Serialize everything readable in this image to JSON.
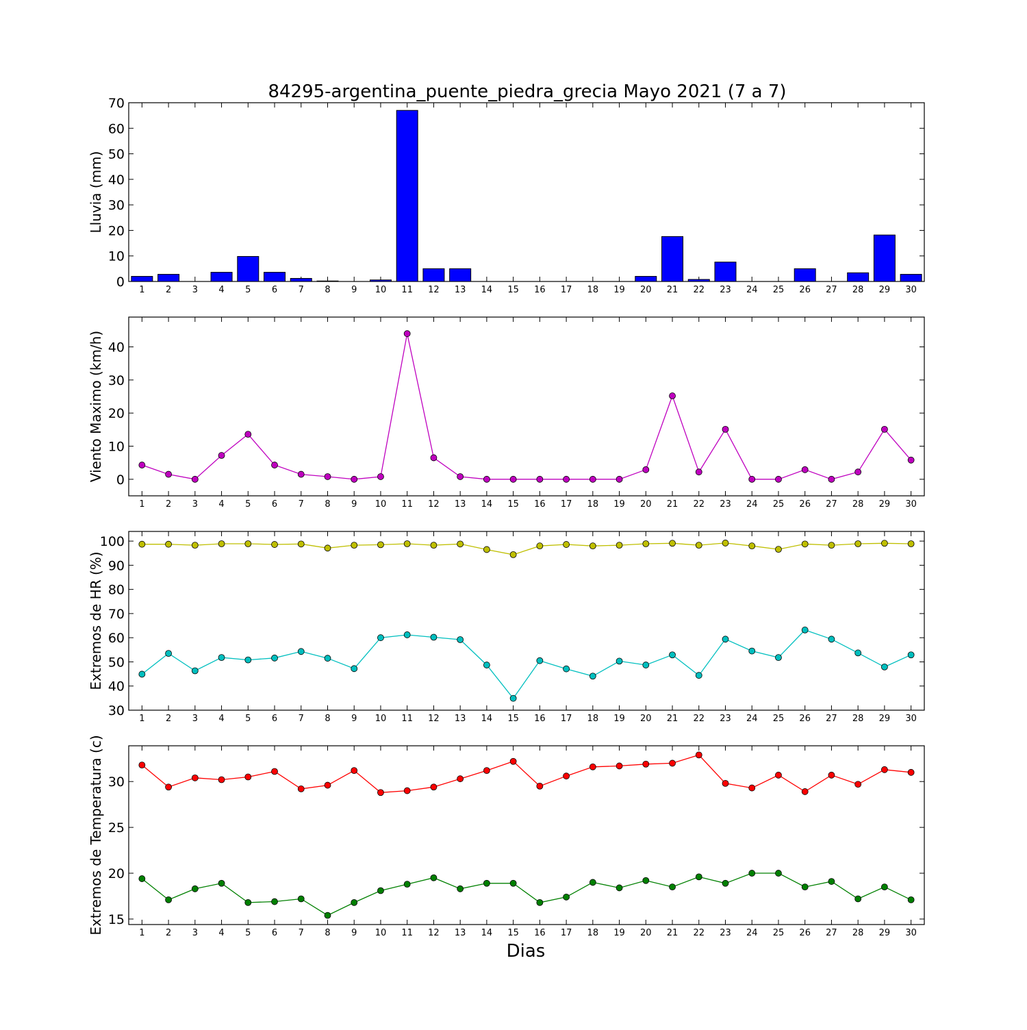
{
  "title": "84295-argentina_puente_piedra_grecia Mayo 2021  (7 a 7)",
  "xlabel": "Dias",
  "colors": {
    "rain_bar": "#0000ff",
    "wind": "#bf00bf",
    "hr_max": "#bfbf00",
    "hr_min": "#00bfbf",
    "temp_max": "#ff0000",
    "temp_min": "#008000"
  },
  "chart_data": [
    {
      "type": "bar",
      "ylabel": "Lluvia (mm)",
      "categories": [
        "1",
        "2",
        "3",
        "4",
        "5",
        "6",
        "7",
        "8",
        "9",
        "10",
        "11",
        "12",
        "13",
        "14",
        "15",
        "16",
        "17",
        "18",
        "19",
        "20",
        "21",
        "22",
        "23",
        "24",
        "25",
        "26",
        "27",
        "28",
        "29",
        "30"
      ],
      "ylim": [
        0,
        70
      ],
      "yticks": [
        0,
        10,
        20,
        30,
        40,
        50,
        60,
        70
      ],
      "series": [
        {
          "values": [
            2.0,
            2.8,
            0,
            3.6,
            9.8,
            3.6,
            1.2,
            0.2,
            0,
            0.6,
            67.0,
            5.0,
            5.0,
            0,
            0,
            0,
            0,
            0,
            0,
            2.0,
            17.6,
            0.8,
            7.6,
            0,
            0,
            5.0,
            0,
            3.4,
            18.2,
            2.8
          ]
        }
      ]
    },
    {
      "type": "line",
      "ylabel": "Viento Maximo (km/h)",
      "categories": [
        "1",
        "2",
        "3",
        "4",
        "5",
        "6",
        "7",
        "8",
        "9",
        "10",
        "11",
        "12",
        "13",
        "14",
        "15",
        "16",
        "17",
        "18",
        "19",
        "20",
        "21",
        "22",
        "23",
        "24",
        "25",
        "26",
        "27",
        "28",
        "29",
        "30"
      ],
      "ylim": [
        -5,
        49
      ],
      "yticks": [
        0,
        10,
        20,
        30,
        40
      ],
      "series": [
        {
          "values": [
            4.3,
            1.5,
            0,
            7.2,
            13.6,
            4.3,
            1.5,
            0.8,
            0,
            0.8,
            44.0,
            6.5,
            0.8,
            0,
            0,
            0,
            0,
            0,
            0,
            2.9,
            25.2,
            2.2,
            15.1,
            0,
            0,
            2.9,
            0,
            2.2,
            15.1,
            5.8
          ]
        }
      ]
    },
    {
      "type": "line",
      "ylabel": "Extremos de HR (%)",
      "categories": [
        "1",
        "2",
        "3",
        "4",
        "5",
        "6",
        "7",
        "8",
        "9",
        "10",
        "11",
        "12",
        "13",
        "14",
        "15",
        "16",
        "17",
        "18",
        "19",
        "20",
        "21",
        "22",
        "23",
        "24",
        "25",
        "26",
        "27",
        "28",
        "29",
        "30"
      ],
      "ylim": [
        30,
        104
      ],
      "yticks": [
        30,
        40,
        50,
        60,
        70,
        80,
        90,
        100
      ],
      "series": [
        {
          "values": [
            98.7,
            98.7,
            98.3,
            98.9,
            98.9,
            98.6,
            98.8,
            97.1,
            98.3,
            98.5,
            98.9,
            98.3,
            98.8,
            96.5,
            94.4,
            98.0,
            98.6,
            98.0,
            98.3,
            98.9,
            99.1,
            98.3,
            99.2,
            98.0,
            96.6,
            98.8,
            98.3,
            98.9,
            99.1,
            98.9
          ]
        },
        {
          "values": [
            44.9,
            53.5,
            46.3,
            51.8,
            50.8,
            51.6,
            54.3,
            51.5,
            47.2,
            60.0,
            61.2,
            60.2,
            59.2,
            48.7,
            34.9,
            50.5,
            47.1,
            44.1,
            50.3,
            48.7,
            52.9,
            44.4,
            59.4,
            54.5,
            51.8,
            63.2,
            59.4,
            53.7,
            47.9,
            52.9
          ]
        }
      ]
    },
    {
      "type": "line",
      "ylabel": "Extremos de Temperatura (c)",
      "categories": [
        "1",
        "2",
        "3",
        "4",
        "5",
        "6",
        "7",
        "8",
        "9",
        "10",
        "11",
        "12",
        "13",
        "14",
        "15",
        "16",
        "17",
        "18",
        "19",
        "20",
        "21",
        "22",
        "23",
        "24",
        "25",
        "26",
        "27",
        "28",
        "29",
        "30"
      ],
      "ylim": [
        14.4,
        33.9
      ],
      "yticks": [
        15,
        20,
        25,
        30
      ],
      "series": [
        {
          "values": [
            31.8,
            29.4,
            30.4,
            30.2,
            30.5,
            31.1,
            29.2,
            29.6,
            31.2,
            28.8,
            29.0,
            29.4,
            30.3,
            31.2,
            32.2,
            29.5,
            30.6,
            31.6,
            31.7,
            31.9,
            32.0,
            32.9,
            29.8,
            29.3,
            30.7,
            28.9,
            30.7,
            29.7,
            31.3,
            31.0
          ]
        },
        {
          "values": [
            19.4,
            17.1,
            18.3,
            18.9,
            16.8,
            16.9,
            17.2,
            15.4,
            16.8,
            18.1,
            18.8,
            19.5,
            18.3,
            18.9,
            18.9,
            16.8,
            17.4,
            19.0,
            18.4,
            19.2,
            18.5,
            19.6,
            18.9,
            20.0,
            20.0,
            18.5,
            19.1,
            17.2,
            18.5,
            17.1
          ]
        }
      ]
    }
  ]
}
